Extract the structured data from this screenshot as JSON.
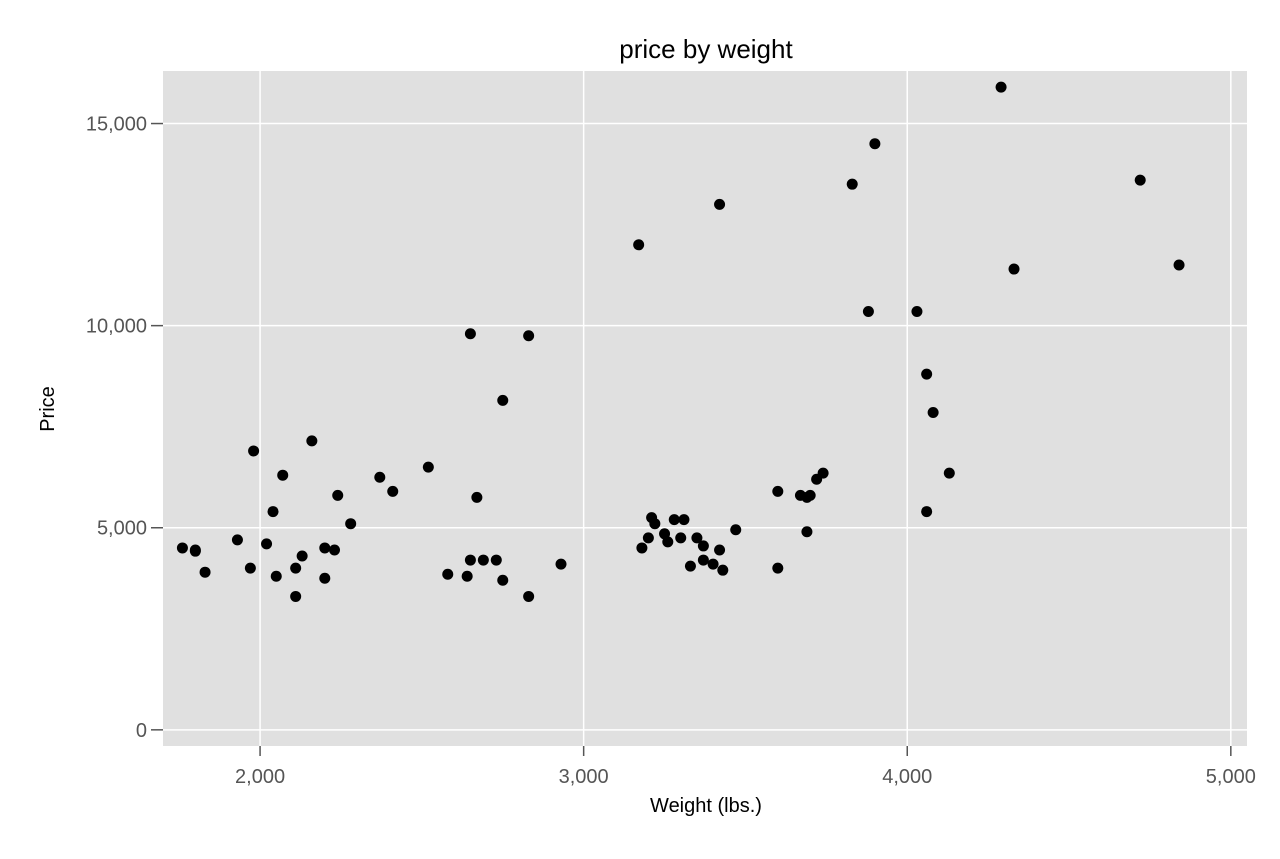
{
  "chart_data": {
    "type": "scatter",
    "title": "price by weight",
    "xlabel": "Weight (lbs.)",
    "ylabel": "Price",
    "xlim": [
      1700,
      5050
    ],
    "ylim": [
      -400,
      16300
    ],
    "xticks": [
      2000,
      3000,
      4000,
      5000
    ],
    "xtick_labels": [
      "2,000",
      "3,000",
      "4,000",
      "5,000"
    ],
    "yticks": [
      0,
      5000,
      10000,
      15000
    ],
    "ytick_labels": [
      "0",
      "5,000",
      "10,000",
      "15,000"
    ],
    "grid": true,
    "legend": "none",
    "colors": {
      "panel": "#e0e0e0",
      "grid": "#ffffff",
      "point": "#000000",
      "text": "#555555",
      "title": "#000000"
    },
    "points": [
      {
        "x": 1760,
        "y": 4500
      },
      {
        "x": 1800,
        "y": 4450
      },
      {
        "x": 1800,
        "y": 4420
      },
      {
        "x": 1830,
        "y": 3900
      },
      {
        "x": 1930,
        "y": 4700
      },
      {
        "x": 1970,
        "y": 4000
      },
      {
        "x": 1980,
        "y": 6900
      },
      {
        "x": 2020,
        "y": 4600
      },
      {
        "x": 2040,
        "y": 5400
      },
      {
        "x": 2050,
        "y": 3800
      },
      {
        "x": 2070,
        "y": 6300
      },
      {
        "x": 2110,
        "y": 3300
      },
      {
        "x": 2110,
        "y": 4000
      },
      {
        "x": 2130,
        "y": 4300
      },
      {
        "x": 2160,
        "y": 7150
      },
      {
        "x": 2200,
        "y": 4500
      },
      {
        "x": 2200,
        "y": 3750
      },
      {
        "x": 2230,
        "y": 4450
      },
      {
        "x": 2240,
        "y": 5800
      },
      {
        "x": 2280,
        "y": 5100
      },
      {
        "x": 2370,
        "y": 6250
      },
      {
        "x": 2410,
        "y": 5900
      },
      {
        "x": 2520,
        "y": 6500
      },
      {
        "x": 2580,
        "y": 3850
      },
      {
        "x": 2640,
        "y": 3800
      },
      {
        "x": 2650,
        "y": 4200
      },
      {
        "x": 2650,
        "y": 9800
      },
      {
        "x": 2670,
        "y": 5750
      },
      {
        "x": 2690,
        "y": 4200
      },
      {
        "x": 2730,
        "y": 4200
      },
      {
        "x": 2750,
        "y": 3700
      },
      {
        "x": 2750,
        "y": 8150
      },
      {
        "x": 2830,
        "y": 3300
      },
      {
        "x": 2830,
        "y": 9750
      },
      {
        "x": 2930,
        "y": 4100
      },
      {
        "x": 3170,
        "y": 12000
      },
      {
        "x": 3180,
        "y": 4500
      },
      {
        "x": 3200,
        "y": 4750
      },
      {
        "x": 3210,
        "y": 5250
      },
      {
        "x": 3220,
        "y": 5100
      },
      {
        "x": 3250,
        "y": 4850
      },
      {
        "x": 3260,
        "y": 4650
      },
      {
        "x": 3280,
        "y": 5200
      },
      {
        "x": 3300,
        "y": 4750
      },
      {
        "x": 3310,
        "y": 5200
      },
      {
        "x": 3330,
        "y": 4050
      },
      {
        "x": 3350,
        "y": 4750
      },
      {
        "x": 3370,
        "y": 4200
      },
      {
        "x": 3370,
        "y": 4550
      },
      {
        "x": 3400,
        "y": 4100
      },
      {
        "x": 3420,
        "y": 4450
      },
      {
        "x": 3420,
        "y": 13000
      },
      {
        "x": 3430,
        "y": 3950
      },
      {
        "x": 3470,
        "y": 4950
      },
      {
        "x": 3600,
        "y": 4000
      },
      {
        "x": 3600,
        "y": 5900
      },
      {
        "x": 3670,
        "y": 5800
      },
      {
        "x": 3690,
        "y": 4900
      },
      {
        "x": 3690,
        "y": 5750
      },
      {
        "x": 3700,
        "y": 5800
      },
      {
        "x": 3720,
        "y": 6200
      },
      {
        "x": 3740,
        "y": 6350
      },
      {
        "x": 3830,
        "y": 13500
      },
      {
        "x": 3880,
        "y": 10350
      },
      {
        "x": 3900,
        "y": 14500
      },
      {
        "x": 4030,
        "y": 10350
      },
      {
        "x": 4060,
        "y": 8800
      },
      {
        "x": 4060,
        "y": 5400
      },
      {
        "x": 4080,
        "y": 7850
      },
      {
        "x": 4130,
        "y": 6350
      },
      {
        "x": 4290,
        "y": 15900
      },
      {
        "x": 4330,
        "y": 11400
      },
      {
        "x": 4720,
        "y": 13600
      },
      {
        "x": 4840,
        "y": 11500
      }
    ]
  }
}
